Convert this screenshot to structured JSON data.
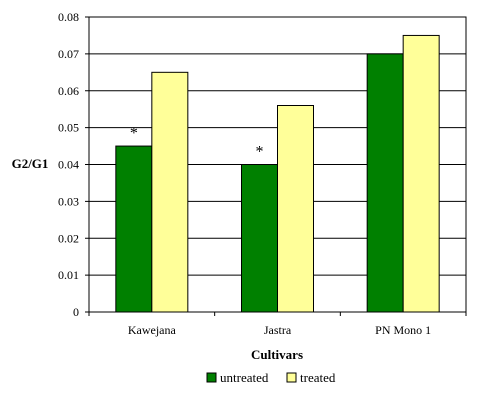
{
  "chart_data": {
    "type": "bar",
    "title": "",
    "xlabel": "Cultivars",
    "ylabel": "G2/G1",
    "ylim": [
      0,
      0.08
    ],
    "yticks": [
      "0",
      "0.01",
      "0.02",
      "0.03",
      "0.04",
      "0.05",
      "0.06",
      "0.07",
      "0.08"
    ],
    "categories": [
      "Kawejana",
      "Jastra",
      "PN Mono 1"
    ],
    "series": [
      {
        "name": "untreated",
        "color": "#008000",
        "values": [
          0.045,
          0.04,
          0.07
        ]
      },
      {
        "name": "treated",
        "color": "#ffff99",
        "values": [
          0.065,
          0.056,
          0.075
        ]
      }
    ],
    "annotations": [
      {
        "text": "*",
        "category_index": 0,
        "series_index": 0
      },
      {
        "text": "*",
        "category_index": 1,
        "series_index": 0
      }
    ],
    "grid": true,
    "legend": "bottom"
  }
}
